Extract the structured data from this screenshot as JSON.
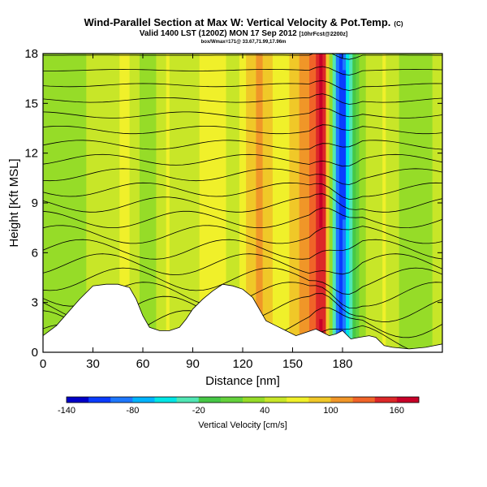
{
  "title": {
    "main": "Wind-Parallel Section at Max W: Vertical Velocity & Pot.Temp.",
    "copyright": "(C)",
    "valid": "Valid 1400 LST (1200Z) MON 17 Sep 2012",
    "fcst": "[10hrFcst@2200z]",
    "info": "box/Wmax=171@ 33.67,71.99,17.96m"
  },
  "chart_data": {
    "type": "heatmap",
    "xlabel": "Distance [nm]",
    "ylabel": "Height [Kft MSL]",
    "xlim": [
      0,
      240
    ],
    "ylim": [
      0,
      18
    ],
    "x_ticks": [
      0,
      30,
      60,
      90,
      120,
      150,
      180
    ],
    "y_ticks": [
      0,
      3,
      6,
      9,
      12,
      15,
      18
    ],
    "colorbar": {
      "label": "Vertical Velocity [cm/s]",
      "range": [
        -140,
        180
      ],
      "tick_values": [
        -140,
        -80,
        -20,
        40,
        100,
        160
      ],
      "colors": [
        "#0000c8",
        "#0a3cff",
        "#1e78ff",
        "#00b4ff",
        "#00e6e6",
        "#50e6b4",
        "#46c846",
        "#64d23c",
        "#96dc28",
        "#c8e628",
        "#f0f02a",
        "#f0c828",
        "#f09628",
        "#f06428",
        "#dc2828",
        "#c80028"
      ]
    },
    "terrain_kft": [
      [
        0,
        1.0
      ],
      [
        8,
        1.6
      ],
      [
        15,
        2.4
      ],
      [
        22,
        3.2
      ],
      [
        30,
        4.0
      ],
      [
        38,
        4.1
      ],
      [
        45,
        4.1
      ],
      [
        52,
        3.9
      ],
      [
        56,
        3.2
      ],
      [
        60,
        2.2
      ],
      [
        64,
        1.5
      ],
      [
        70,
        1.3
      ],
      [
        76,
        1.3
      ],
      [
        82,
        1.5
      ],
      [
        86,
        2.0
      ],
      [
        90,
        2.6
      ],
      [
        96,
        3.2
      ],
      [
        102,
        3.7
      ],
      [
        108,
        4.1
      ],
      [
        114,
        4.0
      ],
      [
        120,
        3.8
      ],
      [
        126,
        3.3
      ],
      [
        130,
        2.6
      ],
      [
        134,
        1.9
      ],
      [
        140,
        1.6
      ],
      [
        146,
        1.3
      ],
      [
        152,
        1.0
      ],
      [
        158,
        1.2
      ],
      [
        164,
        1.4
      ],
      [
        168,
        1.2
      ],
      [
        172,
        1.0
      ],
      [
        176,
        1.1
      ],
      [
        180,
        1.3
      ],
      [
        185,
        0.8
      ],
      [
        190,
        0.9
      ],
      [
        196,
        1.0
      ],
      [
        200,
        0.9
      ],
      [
        205,
        0.4
      ],
      [
        210,
        0.3
      ],
      [
        220,
        0.2
      ],
      [
        230,
        0.3
      ],
      [
        240,
        0.5
      ]
    ],
    "updraft_bands": [
      {
        "x": 0,
        "value": 20
      },
      {
        "x": 12,
        "value": 40
      },
      {
        "x": 22,
        "value": 20
      },
      {
        "x": 30,
        "value": 60
      },
      {
        "x": 40,
        "value": 40
      },
      {
        "x": 50,
        "value": 70
      },
      {
        "x": 62,
        "value": 20
      },
      {
        "x": 75,
        "value": 60
      },
      {
        "x": 88,
        "value": 40
      },
      {
        "x": 102,
        "value": 80
      },
      {
        "x": 115,
        "value": 50
      },
      {
        "x": 130,
        "value": 110
      },
      {
        "x": 142,
        "value": 60
      },
      {
        "x": 152,
        "value": 90
      },
      {
        "x": 160,
        "value": 120
      },
      {
        "x": 168,
        "value": 171
      },
      {
        "x": 178,
        "value": -120
      },
      {
        "x": 190,
        "value": 30
      },
      {
        "x": 205,
        "value": 60
      },
      {
        "x": 222,
        "value": 20
      },
      {
        "x": 235,
        "value": 40
      }
    ]
  }
}
